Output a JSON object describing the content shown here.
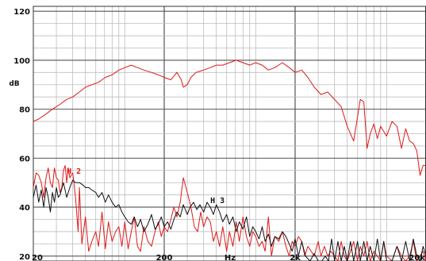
{
  "chart_data": {
    "type": "line",
    "title": "",
    "xlabel": "Hz",
    "ylabel": "dB",
    "x_scale": "log",
    "xlim": [
      20,
      20000
    ],
    "ylim": [
      18,
      122
    ],
    "x_ticks": [
      {
        "value": 20,
        "label": "20"
      },
      {
        "value": 200,
        "label": "200"
      },
      {
        "value": 2000,
        "label": "2k"
      },
      {
        "value": 20000,
        "label": "20k"
      }
    ],
    "y_ticks": [
      {
        "value": 20,
        "label": "20"
      },
      {
        "value": 40,
        "label": "40"
      },
      {
        "value": 60,
        "label": "60"
      },
      {
        "value": 80,
        "label": "80"
      },
      {
        "value": 100,
        "label": "100"
      },
      {
        "value": 120,
        "label": "120"
      }
    ],
    "grid": true,
    "colors": {
      "fundamental": "#e01818",
      "h2": "#e01818",
      "h3": "#111111",
      "grid": "#bdbdbd",
      "major_grid": "#555555"
    },
    "annotations": [
      {
        "text": "H 2",
        "x": 36,
        "y": 55,
        "color": "#e01818"
      },
      {
        "text": "H 3",
        "x": 450,
        "y": 43,
        "color": "#111111"
      }
    ],
    "series": [
      {
        "x": [
          20,
          22,
          25,
          28,
          32,
          36,
          40,
          45,
          50,
          56,
          63,
          71,
          80,
          90,
          100,
          112,
          125,
          140,
          160,
          180,
          200,
          225,
          250,
          270,
          280,
          300,
          320,
          350,
          400,
          450,
          500,
          560,
          630,
          710,
          800,
          900,
          1000,
          1120,
          1250,
          1400,
          1600,
          1800,
          2000,
          2250,
          2500,
          2800,
          3150,
          3550,
          4000,
          4500,
          5000,
          5600,
          6300,
          6700,
          7100,
          7500,
          8000,
          8500,
          9000,
          10000,
          11000,
          12000,
          13000,
          14000,
          15000,
          16000,
          17000,
          18000,
          19000,
          20000
        ],
        "y": [
          75,
          76,
          78,
          80,
          82,
          84,
          85,
          87,
          89,
          90,
          91,
          93,
          94,
          96,
          97,
          98,
          97,
          96,
          95,
          94,
          93,
          92,
          95,
          92,
          89,
          90,
          93,
          95,
          96,
          97,
          98,
          98,
          99,
          100,
          99,
          98,
          99,
          98,
          96,
          97,
          99,
          97,
          95,
          96,
          93,
          89,
          86,
          87,
          84,
          81,
          73,
          67,
          84,
          83,
          64,
          70,
          74,
          68,
          73,
          69,
          75,
          73,
          64,
          72,
          67,
          66,
          63,
          53,
          57,
          57
        ]
      },
      {
        "name": "H 2",
        "x": [
          20,
          21,
          22,
          23,
          24,
          25,
          26,
          27,
          28,
          29,
          30,
          31,
          32,
          33,
          34,
          35,
          36,
          37,
          38,
          40,
          42,
          44,
          45,
          47,
          50,
          53,
          56,
          60,
          63,
          67,
          71,
          75,
          80,
          85,
          90,
          95,
          100,
          106,
          112,
          118,
          125,
          132,
          140,
          150,
          160,
          170,
          180,
          190,
          200,
          212,
          225,
          237,
          250,
          265,
          280,
          300,
          320,
          340,
          360,
          380,
          400,
          425,
          450,
          475,
          500,
          530,
          560,
          600,
          630,
          670,
          710,
          750,
          800,
          850,
          900,
          950,
          1000,
          1060,
          1120,
          1180,
          1250,
          1320,
          1400,
          1500,
          1600,
          1700,
          1800,
          1900,
          2000,
          2120,
          2250,
          2370,
          2500,
          2650,
          2800,
          3000,
          3150,
          3350,
          3550,
          3750,
          4000,
          4250,
          4500,
          4750,
          5000,
          5300,
          5600,
          6000,
          6300,
          6700,
          7100,
          7500,
          8000,
          8500,
          9000,
          9500,
          10000,
          11000,
          12000,
          13000,
          14000,
          15000,
          16000,
          17000,
          18000,
          19000,
          20000
        ],
        "y": [
          48,
          54,
          53,
          50,
          44,
          52,
          56,
          50,
          48,
          56,
          52,
          51,
          46,
          48,
          55,
          57,
          50,
          56,
          52,
          54,
          44,
          30,
          48,
          25,
          36,
          22,
          26,
          30,
          24,
          38,
          23,
          34,
          26,
          30,
          32,
          24,
          34,
          23,
          30,
          36,
          24,
          22,
          32,
          26,
          24,
          30,
          34,
          28,
          32,
          30,
          35,
          40,
          36,
          42,
          52,
          46,
          40,
          32,
          30,
          38,
          32,
          36,
          34,
          26,
          30,
          24,
          32,
          22,
          30,
          24,
          34,
          26,
          36,
          28,
          24,
          30,
          28,
          24,
          26,
          22,
          36,
          20,
          28,
          26,
          30,
          24,
          20,
          26,
          24,
          28,
          26,
          20,
          24,
          22,
          20,
          26,
          20,
          24,
          20,
          22,
          20,
          18,
          26,
          20,
          18,
          22,
          26,
          18,
          24,
          20,
          26,
          18,
          22,
          20,
          18,
          26,
          20,
          18,
          24,
          20,
          18,
          20,
          26,
          18,
          20,
          22,
          18
        ]
      },
      {
        "name": "H 3",
        "x": [
          20,
          21,
          22,
          23,
          24,
          25,
          26,
          27,
          28,
          29,
          30,
          31,
          32,
          34,
          36,
          38,
          40,
          42,
          45,
          48,
          50,
          53,
          56,
          60,
          63,
          67,
          71,
          75,
          80,
          85,
          90,
          95,
          100,
          106,
          112,
          118,
          125,
          132,
          140,
          150,
          160,
          170,
          180,
          190,
          200,
          212,
          225,
          237,
          250,
          265,
          280,
          300,
          315,
          335,
          355,
          375,
          400,
          425,
          450,
          475,
          500,
          530,
          560,
          600,
          630,
          670,
          710,
          750,
          800,
          850,
          900,
          950,
          1000,
          1060,
          1120,
          1180,
          1250,
          1320,
          1400,
          1500,
          1600,
          1700,
          1800,
          1900,
          2000,
          2120,
          2250,
          2400,
          2600,
          2800,
          3000,
          3200,
          3400,
          3600,
          3800,
          4000,
          4250,
          4500,
          4750,
          5000,
          5300,
          5600,
          6000,
          6300,
          6700,
          7100,
          7500,
          8000,
          8500,
          9000,
          9500,
          10000,
          11000,
          12000,
          13000,
          14000,
          15000,
          16000,
          17000,
          18000,
          19000,
          20000
        ],
        "y": [
          44,
          49,
          42,
          47,
          40,
          48,
          44,
          38,
          46,
          42,
          48,
          44,
          45,
          50,
          44,
          48,
          51,
          50,
          50,
          49,
          48,
          48,
          47,
          46,
          44,
          46,
          42,
          45,
          42,
          40,
          41,
          38,
          36,
          34,
          33,
          36,
          32,
          35,
          30,
          33,
          37,
          31,
          33,
          36,
          32,
          34,
          31,
          35,
          38,
          36,
          41,
          37,
          40,
          42,
          39,
          41,
          38,
          42,
          40,
          37,
          41,
          38,
          34,
          37,
          33,
          36,
          30,
          34,
          31,
          36,
          28,
          32,
          30,
          27,
          32,
          26,
          29,
          24,
          28,
          27,
          30,
          28,
          25,
          22,
          27,
          20,
          26,
          20,
          18,
          21,
          18,
          18,
          20,
          18,
          27,
          18,
          26,
          18,
          24,
          18,
          26,
          18,
          26,
          18,
          26,
          18,
          24,
          18,
          27,
          18,
          26,
          18,
          18,
          24,
          18,
          26,
          18,
          27,
          20,
          18,
          24,
          20
        ]
      }
    ]
  }
}
